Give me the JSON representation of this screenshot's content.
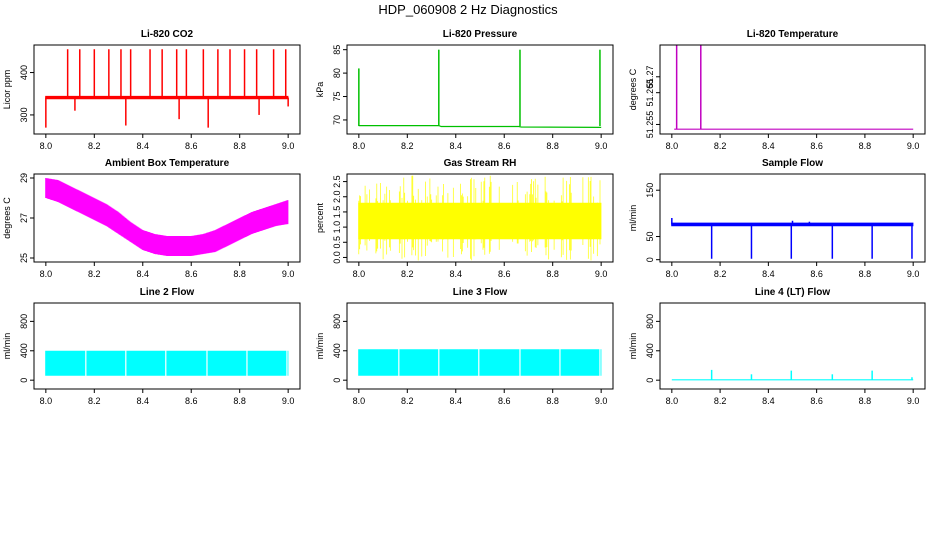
{
  "title": "HDP_060908 2 Hz Diagnostics",
  "chart_data": [
    {
      "type": "line",
      "title": "Li-820 CO2",
      "ylabel": "Licor ppm",
      "color": "#ff0000",
      "xlim": [
        7.98,
        9.02
      ],
      "xticks": [
        "8.0",
        "8.2",
        "8.4",
        "8.6",
        "8.8",
        "9.0"
      ],
      "ylim": [
        255,
        465
      ],
      "yticks": [
        300,
        400
      ],
      "series": [
        {
          "kind": "band",
          "x": [
            8.0,
            9.0
          ],
          "lower": [
            337,
            337
          ],
          "upper": [
            345,
            345
          ]
        },
        {
          "kind": "spikes",
          "x": [
            8.09,
            8.14,
            8.2,
            8.26,
            8.31,
            8.35,
            8.43,
            8.48,
            8.54,
            8.58,
            8.65,
            8.71,
            8.76,
            8.82,
            8.87,
            8.94,
            8.99
          ],
          "base": 341,
          "peak": [
            455,
            455,
            455,
            455,
            455,
            455,
            455,
            455,
            455,
            455,
            455,
            455,
            455,
            455,
            455,
            455,
            455
          ]
        },
        {
          "kind": "spikes",
          "x": [
            8.0,
            8.12,
            8.33,
            8.55,
            8.67,
            8.88,
            9.0
          ],
          "base": 341,
          "peak": [
            270,
            310,
            275,
            290,
            270,
            300,
            320
          ]
        }
      ]
    },
    {
      "type": "line",
      "title": "Li-820 Pressure",
      "ylabel": "kPa",
      "color": "#00c000",
      "xlim": [
        7.98,
        9.02
      ],
      "xticks": [
        "8.0",
        "8.2",
        "8.4",
        "8.6",
        "8.8",
        "9.0"
      ],
      "ylim": [
        67,
        86
      ],
      "yticks": [
        70,
        75,
        80,
        85
      ],
      "series": [
        {
          "kind": "line",
          "x": [
            8.0,
            8.33,
            8.34,
            8.66,
            8.67,
            9.0
          ],
          "y": [
            68.8,
            68.8,
            68.6,
            68.6,
            68.5,
            68.4
          ]
        },
        {
          "kind": "spikes",
          "x": [
            8.0,
            8.33,
            8.665,
            8.995
          ],
          "base": 68.7,
          "peak": [
            81,
            85,
            85,
            85
          ]
        }
      ]
    },
    {
      "type": "line",
      "title": "Li-820 Temperature",
      "ylabel": "degrees C",
      "color": "#c000c0",
      "xlim": [
        7.98,
        9.02
      ],
      "xticks": [
        "8.0",
        "8.2",
        "8.4",
        "8.6",
        "8.8",
        "9.0"
      ],
      "ylim": [
        51.252,
        51.28
      ],
      "yticks": [
        51.255,
        51.265,
        51.27
      ],
      "series": [
        {
          "kind": "line",
          "x": [
            8.01,
            9.0
          ],
          "y": [
            51.2535,
            51.2535
          ]
        },
        {
          "kind": "spikes",
          "x": [
            8.02,
            8.12
          ],
          "base": 51.2535,
          "peak": [
            51.28,
            51.28
          ]
        }
      ]
    },
    {
      "type": "line",
      "title": "Ambient Box Temperature",
      "ylabel": "degrees C",
      "color": "#ff00ff",
      "xlim": [
        7.98,
        9.02
      ],
      "xticks": [
        "8.0",
        "8.2",
        "8.4",
        "8.6",
        "8.8",
        "9.0"
      ],
      "ylim": [
        24.8,
        29.2
      ],
      "yticks": [
        25,
        27,
        29
      ],
      "series": [
        {
          "kind": "band",
          "x": [
            8.0,
            8.05,
            8.1,
            8.15,
            8.2,
            8.25,
            8.3,
            8.35,
            8.4,
            8.45,
            8.5,
            8.55,
            8.6,
            8.65,
            8.7,
            8.75,
            8.8,
            8.85,
            8.9,
            8.95,
            9.0
          ],
          "lower": [
            28.0,
            27.8,
            27.5,
            27.2,
            26.9,
            26.6,
            26.2,
            25.8,
            25.4,
            25.2,
            25.1,
            25.1,
            25.1,
            25.2,
            25.3,
            25.6,
            25.9,
            26.2,
            26.4,
            26.6,
            26.7
          ],
          "upper": [
            29.0,
            28.9,
            28.6,
            28.3,
            28.0,
            27.7,
            27.3,
            26.8,
            26.4,
            26.2,
            26.1,
            26.1,
            26.1,
            26.2,
            26.4,
            26.7,
            27.0,
            27.3,
            27.5,
            27.7,
            27.9
          ]
        }
      ]
    },
    {
      "type": "line",
      "title": "Gas Stream RH",
      "ylabel": "percent",
      "color": "#ffff00",
      "xlim": [
        7.98,
        9.02
      ],
      "xticks": [
        "8.0",
        "8.2",
        "8.4",
        "8.6",
        "8.8",
        "9.0"
      ],
      "ylim": [
        -0.15,
        2.75
      ],
      "yticks": [
        "0.0",
        "0.5",
        "1.0",
        "1.5",
        "2.0",
        "2.5"
      ],
      "series": [
        {
          "kind": "band",
          "x": [
            8.0,
            9.0
          ],
          "lower": [
            0.6,
            0.6
          ],
          "upper": [
            1.8,
            1.8
          ]
        },
        {
          "kind": "noise",
          "x": [
            8.0,
            9.0
          ],
          "lower": -0.1,
          "upper": 2.7
        }
      ]
    },
    {
      "type": "line",
      "title": "Sample Flow",
      "ylabel": "ml/min",
      "color": "#0000ff",
      "xlim": [
        7.98,
        9.02
      ],
      "xticks": [
        "8.0",
        "8.2",
        "8.4",
        "8.6",
        "8.8",
        "9.0"
      ],
      "ylim": [
        -5,
        185
      ],
      "yticks": [
        0,
        50,
        150
      ],
      "series": [
        {
          "kind": "band",
          "x": [
            8.0,
            9.0
          ],
          "lower": [
            72,
            72
          ],
          "upper": [
            80,
            80
          ]
        },
        {
          "kind": "spikes",
          "x": [
            8.165,
            8.33,
            8.495,
            8.665,
            8.83,
            8.995
          ],
          "base": 76,
          "peak": [
            2,
            2,
            2,
            2,
            2,
            2
          ]
        },
        {
          "kind": "spikes",
          "x": [
            8.0,
            8.5,
            8.57
          ],
          "base": 76,
          "peak": [
            90,
            84,
            82
          ]
        }
      ]
    },
    {
      "type": "line",
      "title": "Line 2 Flow",
      "ylabel": "ml/min",
      "color": "#00ffff",
      "xlim": [
        7.98,
        9.02
      ],
      "xticks": [
        "8.0",
        "8.2",
        "8.4",
        "8.6",
        "8.8",
        "9.0"
      ],
      "ylim": [
        -120,
        1050
      ],
      "yticks": [
        0,
        400,
        800
      ],
      "series": [
        {
          "kind": "band",
          "x": [
            8.0,
            9.0
          ],
          "lower": [
            60,
            60
          ],
          "upper": [
            400,
            400
          ]
        },
        {
          "kind": "gaps",
          "x": [
            8.165,
            8.33,
            8.495,
            8.665,
            8.83,
            8.995
          ]
        }
      ]
    },
    {
      "type": "line",
      "title": "Line 3 Flow",
      "ylabel": "ml/min",
      "color": "#00ffff",
      "xlim": [
        7.98,
        9.02
      ],
      "xticks": [
        "8.0",
        "8.2",
        "8.4",
        "8.6",
        "8.8",
        "9.0"
      ],
      "ylim": [
        -120,
        1050
      ],
      "yticks": [
        0,
        400,
        800
      ],
      "series": [
        {
          "kind": "band",
          "x": [
            8.0,
            9.0
          ],
          "lower": [
            60,
            60
          ],
          "upper": [
            420,
            420
          ]
        },
        {
          "kind": "gaps",
          "x": [
            8.165,
            8.33,
            8.495,
            8.665,
            8.83,
            8.995
          ]
        }
      ]
    },
    {
      "type": "line",
      "title": "Line 4 (LT) Flow",
      "ylabel": "ml/min",
      "color": "#00ffff",
      "xlim": [
        7.98,
        9.02
      ],
      "xticks": [
        "8.0",
        "8.2",
        "8.4",
        "8.6",
        "8.8",
        "9.0"
      ],
      "ylim": [
        -120,
        1050
      ],
      "yticks": [
        0,
        400,
        800
      ],
      "series": [
        {
          "kind": "line",
          "x": [
            8.0,
            9.0
          ],
          "y": [
            5,
            5
          ]
        },
        {
          "kind": "spikes",
          "x": [
            8.165,
            8.33,
            8.495,
            8.665,
            8.83,
            8.995
          ],
          "base": 5,
          "peak": [
            140,
            80,
            130,
            80,
            130,
            40
          ]
        }
      ]
    }
  ]
}
